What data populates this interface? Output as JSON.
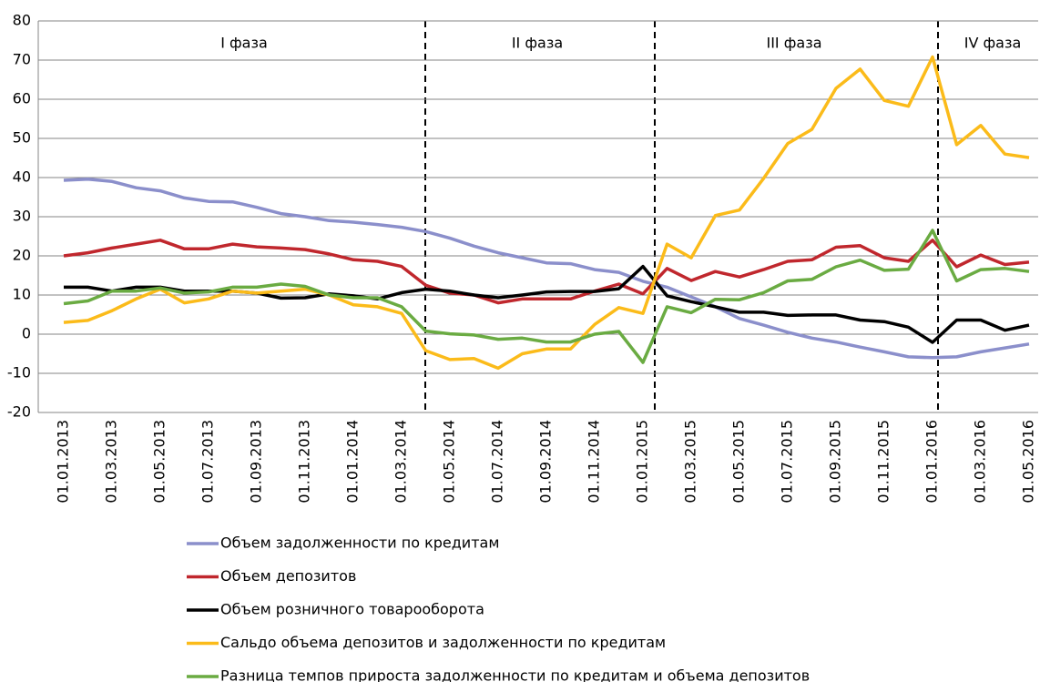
{
  "chart_data": {
    "type": "line",
    "annotations": [
      "I фаза",
      "II фаза",
      "III фаза",
      "IV фаза"
    ],
    "categories": [
      "01.01.2013",
      null,
      "01.03.2013",
      null,
      "01.05.2013",
      null,
      "01.07.2013",
      null,
      "01.09.2013",
      null,
      "01.11.2013",
      null,
      "01.01.2014",
      null,
      "01.03.2014",
      null,
      "01.05.2014",
      null,
      "01.07.2014",
      null,
      "01.09.2014",
      null,
      "01.11.2014",
      null,
      "01.01.2015",
      null,
      "01.03.2015",
      null,
      "01.05.2015",
      null,
      "01.07.2015",
      null,
      "01.09.2015",
      null,
      "01.11.2015",
      null,
      "01.01.2016",
      null,
      "01.03.2016",
      null,
      "01.05.2016"
    ],
    "ylim": [
      -20,
      80
    ],
    "yticks": [
      -20,
      -10,
      0,
      10,
      20,
      30,
      40,
      50,
      60,
      70,
      80
    ],
    "grid": true,
    "series": [
      {
        "name": "Объем задолженности по кредитам",
        "color": "#8b8fcb",
        "values": [
          39.3,
          39.6,
          39,
          37.4,
          36.6,
          34.8,
          33.9,
          33.8,
          32.4,
          30.8,
          30,
          29,
          28.6,
          28,
          27.3,
          26.2,
          24.5,
          22.5,
          20.8,
          19.5,
          18.2,
          18,
          16.5,
          15.8,
          13.5,
          12,
          9.5,
          7,
          4,
          2.3,
          0.5,
          -1,
          -2,
          -3.3,
          -4.5,
          -5.8,
          -6,
          -5.8,
          -4.5,
          -3.5,
          -2.5
        ]
      },
      {
        "name": "Объем депозитов",
        "color": "#c0272d",
        "values": [
          20,
          20.8,
          22,
          23,
          24,
          21.8,
          21.8,
          23,
          22.3,
          22,
          21.6,
          20.5,
          19,
          18.6,
          17.3,
          12.5,
          10.5,
          10,
          8,
          9,
          9,
          9,
          11,
          12.8,
          10.3,
          16.8,
          13.7,
          16,
          14.6,
          16.5,
          18.6,
          19,
          22.2,
          22.6,
          19.5,
          18.6,
          24,
          17.2,
          20.2,
          17.8,
          18.4
        ]
      },
      {
        "name": "Объем розничного товарооборота",
        "color": "#000000",
        "values": [
          12,
          12,
          11,
          12,
          12,
          11,
          11,
          11,
          10.5,
          9.2,
          9.3,
          10.3,
          9.8,
          9,
          10.6,
          11.5,
          11,
          10,
          9.3,
          10,
          10.8,
          10.9,
          10.9,
          11.6,
          17.3,
          9.8,
          8.3,
          7,
          5.6,
          5.6,
          4.8,
          4.9,
          4.9,
          3.6,
          3.2,
          1.8,
          -2.1,
          3.6,
          3.6,
          1,
          2.3
        ]
      },
      {
        "name": "Сальдо объема депозитов и задолженности по кредитам",
        "color": "#fbbb1a",
        "values": [
          3,
          3.5,
          6,
          9,
          11.5,
          8,
          9,
          11,
          10.5,
          11,
          11.5,
          10,
          7.5,
          7,
          5.3,
          -4.2,
          -6.5,
          -6.2,
          -8.7,
          -5,
          -3.8,
          -3.8,
          2.5,
          6.8,
          5.3,
          23,
          19.5,
          30.3,
          31.7,
          39.8,
          48.7,
          52.3,
          62.8,
          67.7,
          59.7,
          58.2,
          70.8,
          48.4,
          53.3,
          46,
          45.1
        ]
      },
      {
        "name": "Разница темпов прироста задолженности по кредитам и объема депозитов",
        "color": "#6aab42",
        "values": [
          7.8,
          8.5,
          11,
          11,
          11.8,
          10.5,
          10.8,
          12,
          12,
          12.8,
          12.2,
          10,
          9.3,
          9.3,
          7,
          0.8,
          0.1,
          -0.2,
          -1.3,
          -1,
          -2,
          -2,
          0,
          0.7,
          -7.2,
          7,
          5.5,
          8.9,
          8.8,
          10.6,
          13.6,
          14,
          17.2,
          18.9,
          16.3,
          16.6,
          26.5,
          13.6,
          16.5,
          16.8,
          16
        ]
      }
    ]
  }
}
